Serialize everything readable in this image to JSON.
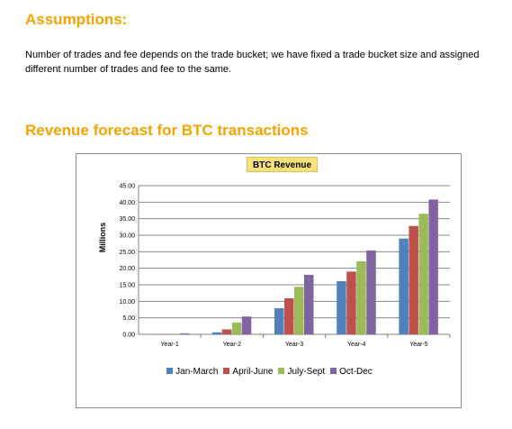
{
  "doc": {
    "heading_assumptions": "Assumptions:",
    "paragraph": "Number of trades and fee depends on the trade bucket; we have fixed a trade bucket size and assigned different number of trades and fee to the same.",
    "heading_forecast": "Revenue forecast for BTC transactions"
  },
  "chart_data": {
    "type": "bar",
    "title": "BTC Revenue",
    "ylabel": "Millions",
    "xlabel": "",
    "ylim": [
      0,
      45
    ],
    "yticks": [
      "0.00",
      "5.00",
      "10.00",
      "15.00",
      "20.00",
      "25.00",
      "30.00",
      "35.00",
      "40.00",
      "45.00"
    ],
    "categories": [
      "Year-1",
      "Year-2",
      "Year-3",
      "Year-4",
      "Year-5"
    ],
    "series": [
      {
        "name": "Jan-March",
        "color": "#4f81bd",
        "values": [
          0.1,
          0.6,
          7.9,
          16.1,
          29.0
        ]
      },
      {
        "name": "April-June",
        "color": "#c0504d",
        "values": [
          0.1,
          1.5,
          10.9,
          19.0,
          32.8
        ]
      },
      {
        "name": "July-Sept",
        "color": "#9bbb59",
        "values": [
          0.2,
          3.6,
          14.4,
          22.1,
          36.5
        ]
      },
      {
        "name": "Oct-Dec",
        "color": "#8064a2",
        "values": [
          0.3,
          5.4,
          18.0,
          25.4,
          40.8
        ]
      }
    ],
    "grid": true,
    "legend_position": "bottom"
  }
}
